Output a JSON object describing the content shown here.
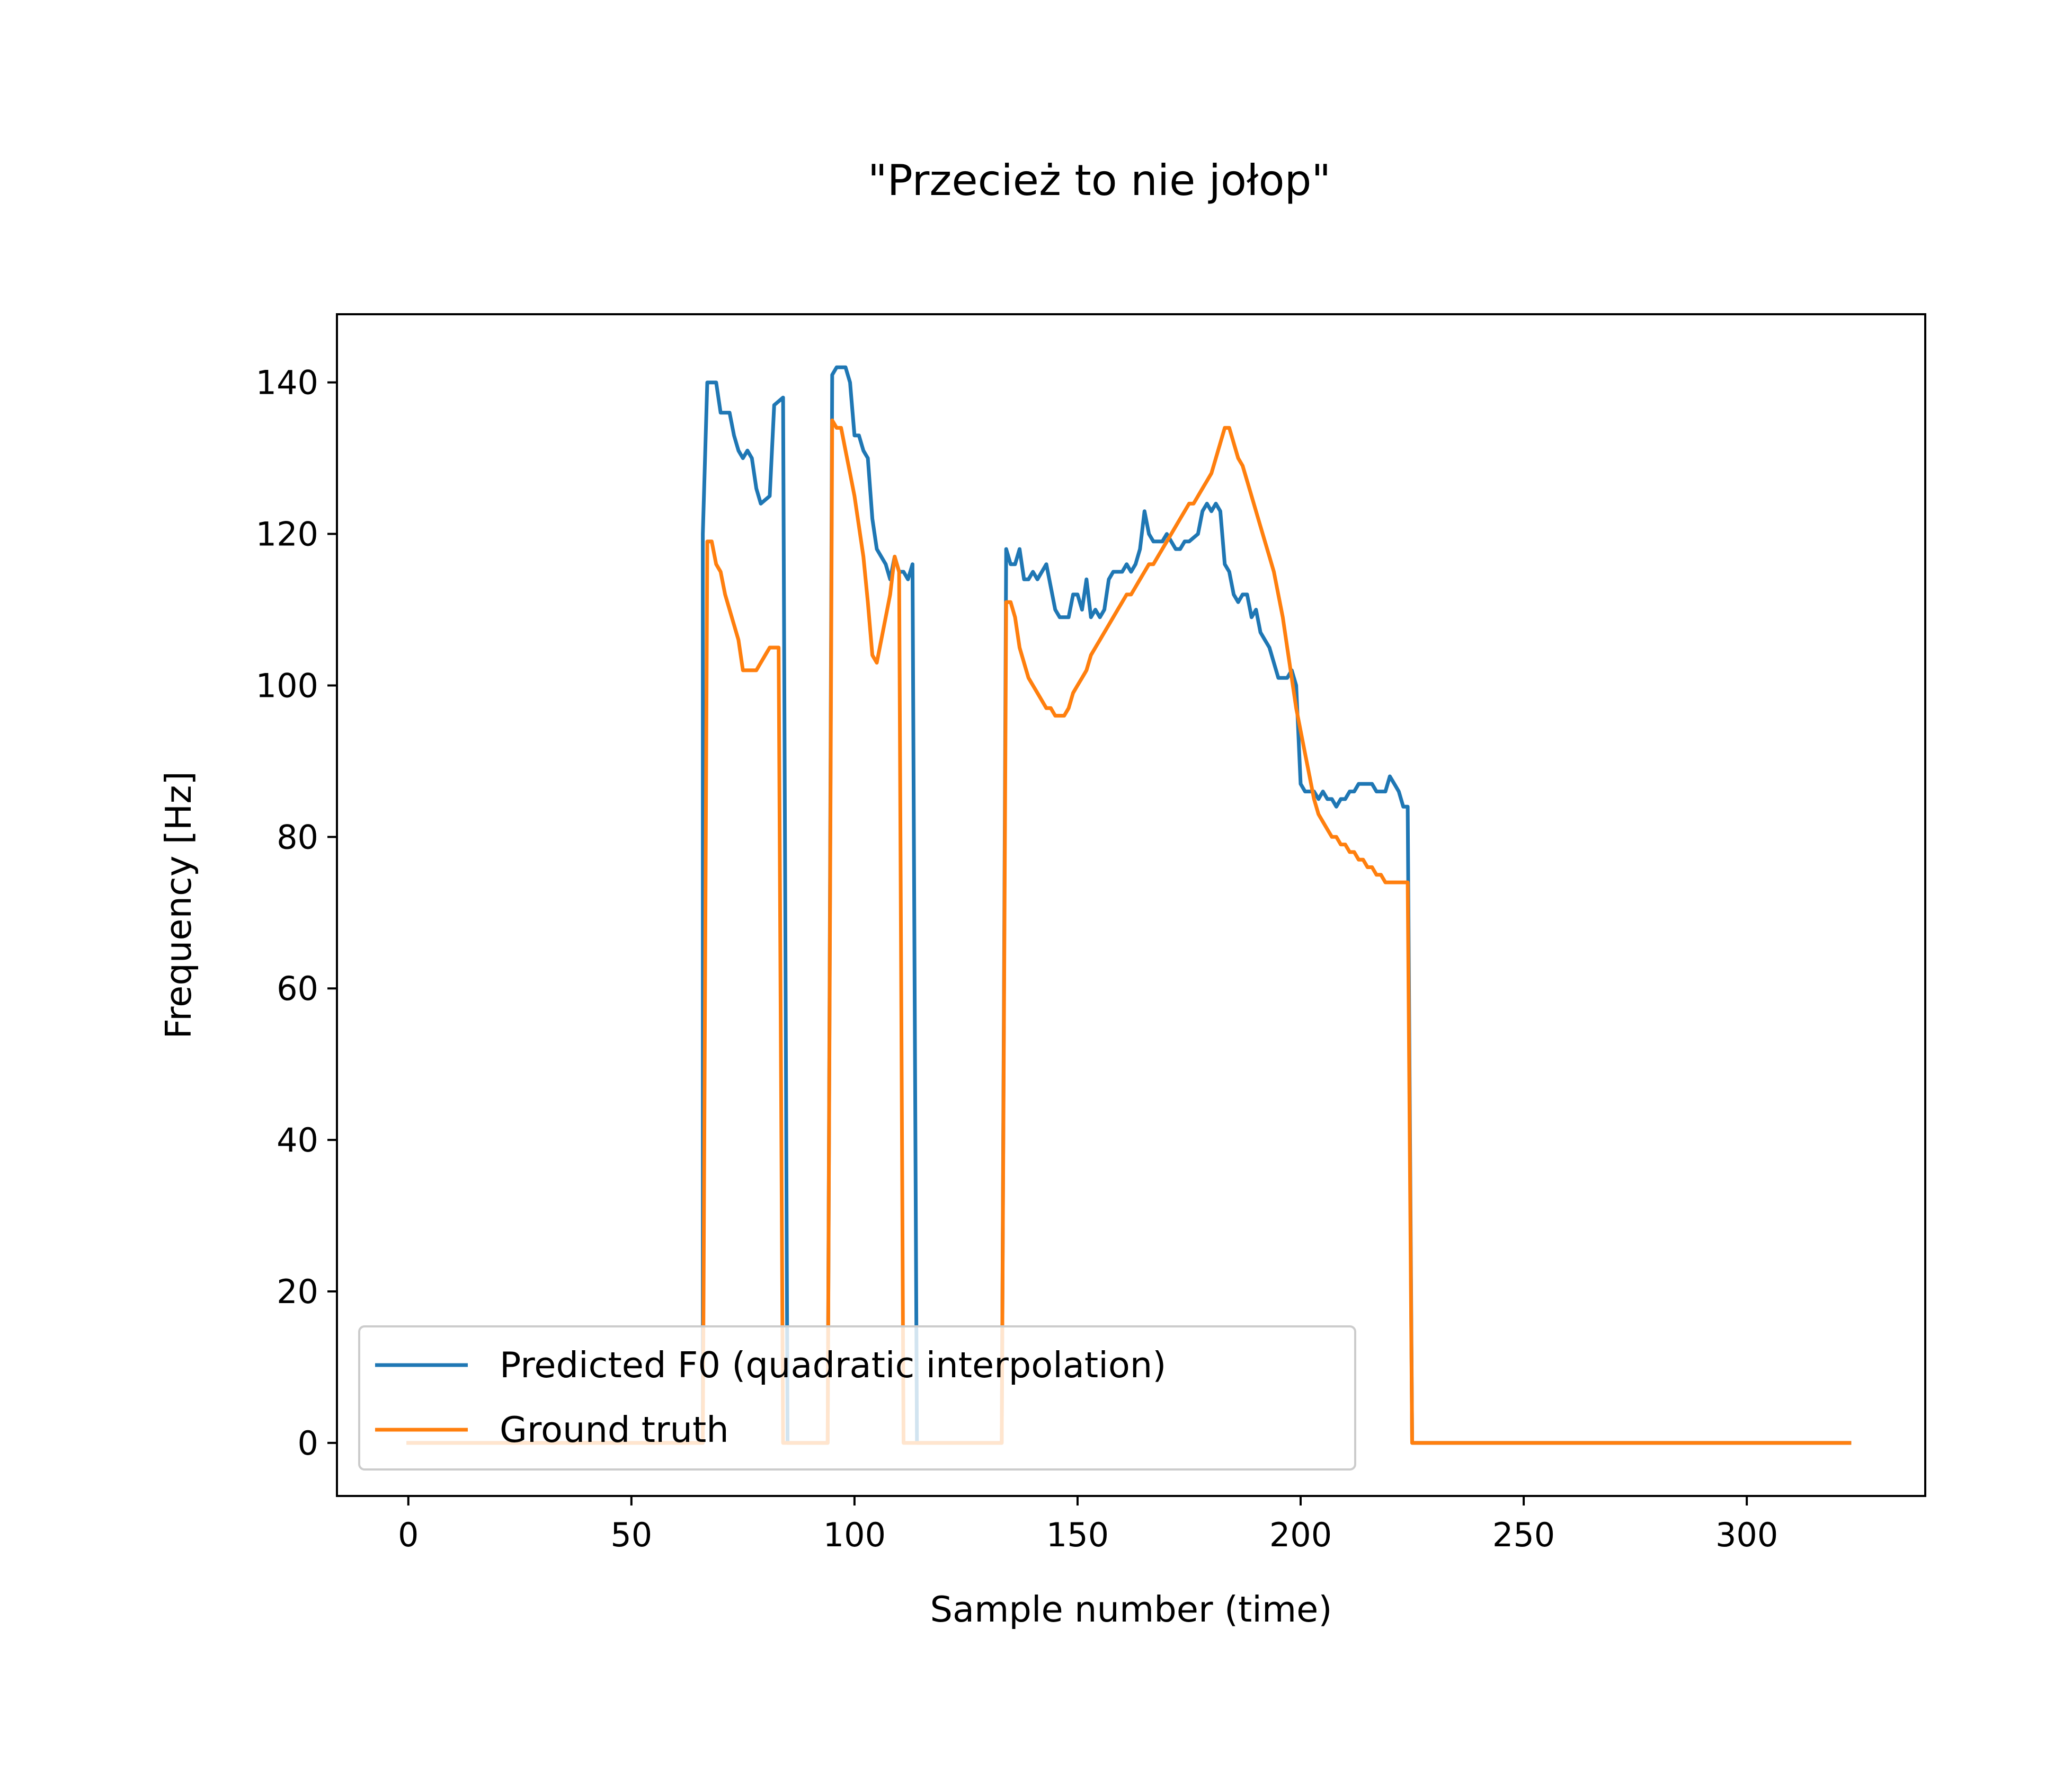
{
  "chart_data": {
    "type": "line",
    "title": "\"Przecież to nie jołop\"",
    "xlabel": "Sample number (time)",
    "ylabel": "Frequency [Hz]",
    "xlim": [
      -16,
      340
    ],
    "ylim": [
      -7,
      149
    ],
    "xticks": [
      0,
      50,
      100,
      150,
      200,
      250,
      300
    ],
    "yticks": [
      0,
      20,
      40,
      60,
      80,
      100,
      120,
      140
    ],
    "grid": false,
    "legend_position": "lower left",
    "series": [
      {
        "name": "Predicted F0 (quadratic interpolation)",
        "color": "#1f77b4",
        "points": [
          [
            0,
            0
          ],
          [
            66,
            0
          ],
          [
            66,
            120
          ],
          [
            67,
            140
          ],
          [
            69,
            140
          ],
          [
            70,
            136
          ],
          [
            71,
            136
          ],
          [
            72,
            136
          ],
          [
            73,
            133
          ],
          [
            74,
            131
          ],
          [
            75,
            130
          ],
          [
            76,
            131
          ],
          [
            77,
            130
          ],
          [
            78,
            126
          ],
          [
            79,
            124
          ],
          [
            81,
            125
          ],
          [
            82,
            137
          ],
          [
            84,
            138
          ],
          [
            85,
            0
          ],
          [
            94,
            0
          ],
          [
            95,
            141
          ],
          [
            96,
            142
          ],
          [
            98,
            142
          ],
          [
            99,
            140
          ],
          [
            100,
            133
          ],
          [
            101,
            133
          ],
          [
            102,
            131
          ],
          [
            103,
            130
          ],
          [
            104,
            122
          ],
          [
            105,
            118
          ],
          [
            107,
            116
          ],
          [
            108,
            114
          ],
          [
            109,
            117
          ],
          [
            110,
            115
          ],
          [
            111,
            115
          ],
          [
            112,
            114
          ],
          [
            113,
            116
          ],
          [
            114,
            0
          ],
          [
            133,
            0
          ],
          [
            134,
            118
          ],
          [
            135,
            116
          ],
          [
            136,
            116
          ],
          [
            137,
            118
          ],
          [
            138,
            114
          ],
          [
            139,
            114
          ],
          [
            140,
            115
          ],
          [
            141,
            114
          ],
          [
            142,
            115
          ],
          [
            143,
            116
          ],
          [
            144,
            113
          ],
          [
            145,
            110
          ],
          [
            146,
            109
          ],
          [
            147,
            109
          ],
          [
            148,
            109
          ],
          [
            149,
            112
          ],
          [
            150,
            112
          ],
          [
            151,
            110
          ],
          [
            152,
            114
          ],
          [
            153,
            109
          ],
          [
            154,
            110
          ],
          [
            155,
            109
          ],
          [
            156,
            110
          ],
          [
            157,
            114
          ],
          [
            158,
            115
          ],
          [
            160,
            115
          ],
          [
            161,
            116
          ],
          [
            162,
            115
          ],
          [
            163,
            116
          ],
          [
            164,
            118
          ],
          [
            165,
            123
          ],
          [
            166,
            120
          ],
          [
            167,
            119
          ],
          [
            168,
            119
          ],
          [
            169,
            119
          ],
          [
            170,
            120
          ],
          [
            171,
            119
          ],
          [
            172,
            118
          ],
          [
            173,
            118
          ],
          [
            174,
            119
          ],
          [
            175,
            119
          ],
          [
            177,
            120
          ],
          [
            178,
            123
          ],
          [
            179,
            124
          ],
          [
            180,
            123
          ],
          [
            181,
            124
          ],
          [
            182,
            123
          ],
          [
            183,
            116
          ],
          [
            184,
            115
          ],
          [
            185,
            112
          ],
          [
            186,
            111
          ],
          [
            187,
            112
          ],
          [
            188,
            112
          ],
          [
            189,
            109
          ],
          [
            190,
            110
          ],
          [
            191,
            107
          ],
          [
            192,
            106
          ],
          [
            193,
            105
          ],
          [
            194,
            103
          ],
          [
            195,
            101
          ],
          [
            197,
            101
          ],
          [
            198,
            102
          ],
          [
            199,
            100
          ],
          [
            200,
            87
          ],
          [
            201,
            86
          ],
          [
            202,
            86
          ],
          [
            203,
            86
          ],
          [
            204,
            85
          ],
          [
            205,
            86
          ],
          [
            206,
            85
          ],
          [
            207,
            85
          ],
          [
            208,
            84
          ],
          [
            209,
            85
          ],
          [
            210,
            85
          ],
          [
            211,
            86
          ],
          [
            212,
            86
          ],
          [
            213,
            87
          ],
          [
            214,
            87
          ],
          [
            215,
            87
          ],
          [
            216,
            87
          ],
          [
            217,
            86
          ],
          [
            218,
            86
          ],
          [
            219,
            86
          ],
          [
            220,
            88
          ],
          [
            221,
            87
          ],
          [
            222,
            86
          ],
          [
            223,
            84
          ],
          [
            224,
            84
          ],
          [
            225,
            0
          ],
          [
            241,
            0
          ],
          [
            242,
            0
          ],
          [
            323,
            0
          ]
        ]
      },
      {
        "name": "Ground truth",
        "color": "#ff7f0e",
        "points": [
          [
            0,
            0
          ],
          [
            66,
            0
          ],
          [
            67,
            119
          ],
          [
            68,
            119
          ],
          [
            69,
            116
          ],
          [
            70,
            115
          ],
          [
            71,
            112
          ],
          [
            72,
            110
          ],
          [
            73,
            108
          ],
          [
            74,
            106
          ],
          [
            75,
            102
          ],
          [
            76,
            102
          ],
          [
            77,
            102
          ],
          [
            78,
            102
          ],
          [
            79,
            103
          ],
          [
            80,
            104
          ],
          [
            81,
            105
          ],
          [
            82,
            105
          ],
          [
            83,
            105
          ],
          [
            84,
            0
          ],
          [
            94,
            0
          ],
          [
            95,
            135
          ],
          [
            96,
            134
          ],
          [
            97,
            134
          ],
          [
            98,
            131
          ],
          [
            99,
            128
          ],
          [
            100,
            125
          ],
          [
            101,
            121
          ],
          [
            102,
            117
          ],
          [
            103,
            111
          ],
          [
            104,
            104
          ],
          [
            105,
            103
          ],
          [
            106,
            106
          ],
          [
            107,
            109
          ],
          [
            108,
            112
          ],
          [
            109,
            117
          ],
          [
            110,
            115
          ],
          [
            111,
            0
          ],
          [
            133,
            0
          ],
          [
            134,
            111
          ],
          [
            135,
            111
          ],
          [
            136,
            109
          ],
          [
            137,
            105
          ],
          [
            138,
            103
          ],
          [
            139,
            101
          ],
          [
            140,
            100
          ],
          [
            141,
            99
          ],
          [
            142,
            98
          ],
          [
            143,
            97
          ],
          [
            144,
            97
          ],
          [
            145,
            96
          ],
          [
            146,
            96
          ],
          [
            147,
            96
          ],
          [
            148,
            97
          ],
          [
            149,
            99
          ],
          [
            150,
            100
          ],
          [
            151,
            101
          ],
          [
            152,
            102
          ],
          [
            153,
            104
          ],
          [
            154,
            105
          ],
          [
            155,
            106
          ],
          [
            156,
            107
          ],
          [
            157,
            108
          ],
          [
            158,
            109
          ],
          [
            159,
            110
          ],
          [
            160,
            111
          ],
          [
            161,
            112
          ],
          [
            162,
            112
          ],
          [
            163,
            113
          ],
          [
            164,
            114
          ],
          [
            165,
            115
          ],
          [
            166,
            116
          ],
          [
            167,
            116
          ],
          [
            168,
            117
          ],
          [
            169,
            118
          ],
          [
            170,
            119
          ],
          [
            171,
            120
          ],
          [
            172,
            121
          ],
          [
            173,
            122
          ],
          [
            174,
            123
          ],
          [
            175,
            124
          ],
          [
            176,
            124
          ],
          [
            177,
            125
          ],
          [
            178,
            126
          ],
          [
            179,
            127
          ],
          [
            180,
            128
          ],
          [
            181,
            130
          ],
          [
            182,
            132
          ],
          [
            183,
            134
          ],
          [
            184,
            134
          ],
          [
            185,
            132
          ],
          [
            186,
            130
          ],
          [
            187,
            129
          ],
          [
            188,
            127
          ],
          [
            189,
            125
          ],
          [
            190,
            123
          ],
          [
            191,
            121
          ],
          [
            192,
            119
          ],
          [
            193,
            117
          ],
          [
            194,
            115
          ],
          [
            195,
            112
          ],
          [
            196,
            109
          ],
          [
            197,
            105
          ],
          [
            198,
            101
          ],
          [
            199,
            97
          ],
          [
            200,
            94
          ],
          [
            201,
            91
          ],
          [
            202,
            88
          ],
          [
            203,
            85
          ],
          [
            204,
            83
          ],
          [
            205,
            82
          ],
          [
            206,
            81
          ],
          [
            207,
            80
          ],
          [
            208,
            80
          ],
          [
            209,
            79
          ],
          [
            210,
            79
          ],
          [
            211,
            78
          ],
          [
            212,
            78
          ],
          [
            213,
            77
          ],
          [
            214,
            77
          ],
          [
            215,
            76
          ],
          [
            216,
            76
          ],
          [
            217,
            75
          ],
          [
            218,
            75
          ],
          [
            219,
            74
          ],
          [
            220,
            74
          ],
          [
            221,
            74
          ],
          [
            222,
            74
          ],
          [
            223,
            74
          ],
          [
            224,
            74
          ],
          [
            225,
            0
          ],
          [
            241,
            0
          ],
          [
            323,
            0
          ]
        ]
      }
    ]
  }
}
